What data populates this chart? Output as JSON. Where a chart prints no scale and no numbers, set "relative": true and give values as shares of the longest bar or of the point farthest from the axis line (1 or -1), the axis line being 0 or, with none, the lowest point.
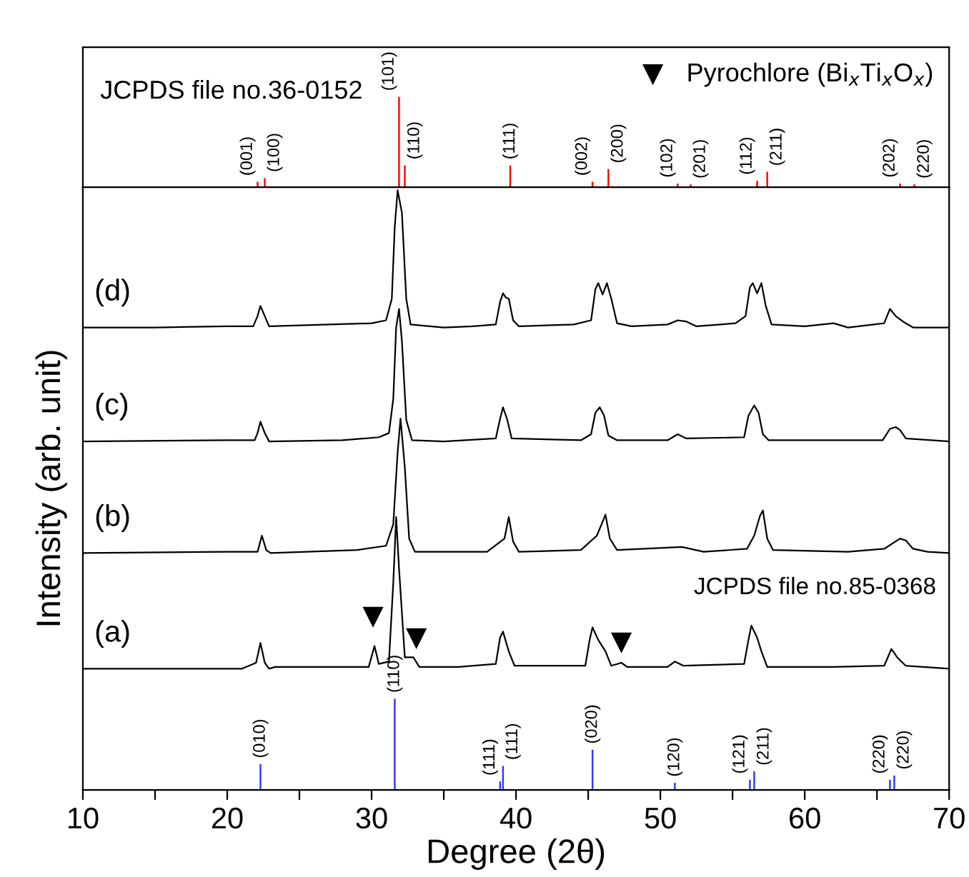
{
  "chart_data": [
    {
      "type": "bar",
      "relative": true,
      "xlim": [
        10,
        70
      ],
      "tick_labels": false,
      "color": "#ff0000",
      "x": [
        22.1,
        22.6,
        31.9,
        32.3,
        39.6,
        45.3,
        46.4,
        51.2,
        52.1,
        56.7,
        57.4,
        66.6,
        67.6
      ],
      "values": [
        0.06,
        0.1,
        1,
        0.24,
        0.24,
        0.06,
        0.2,
        0.04,
        0.03,
        0.07,
        0.17,
        0.04,
        0.03
      ],
      "annotations": [
        "JCPDS file no.36-0152",
        {
          "text": "(001)",
          "x": 22.1,
          "y": 0.06
        },
        {
          "text": "(100)",
          "x": 22.6,
          "y": 0.1
        },
        {
          "text": "(101)",
          "x": 31.9,
          "y": 1
        },
        {
          "text": "(110)",
          "x": 32.3,
          "y": 0.24
        },
        {
          "text": "(111)",
          "x": 39.6,
          "y": 0.24
        },
        {
          "text": "(002)",
          "x": 45.3,
          "y": 0.06
        },
        {
          "text": "(200)",
          "x": 46.4,
          "y": 0.2
        },
        {
          "text": "(102)",
          "x": 51.2,
          "y": 0.04
        },
        {
          "text": "(201)",
          "x": 52.1,
          "y": 0.03
        },
        {
          "text": "(112)",
          "x": 56.7,
          "y": 0.07
        },
        {
          "text": "(211)",
          "x": 57.4,
          "y": 0.17
        },
        {
          "text": "(202)",
          "x": 66.6,
          "y": 0.04
        },
        {
          "text": "(220)",
          "x": 67.6,
          "y": 0.03
        }
      ]
    },
    {
      "type": "line",
      "relative": true,
      "xlim": [
        10,
        70
      ],
      "tick_labels": "x",
      "legend": "top right",
      "xticks": [
        10,
        {
          "value": 15,
          "label": null
        },
        20,
        {
          "value": 25,
          "label": null
        },
        30,
        {
          "value": 35,
          "label": null
        },
        40,
        {
          "value": 45,
          "label": null
        },
        50,
        {
          "value": 55,
          "label": null
        },
        60,
        {
          "value": 65,
          "label": null
        },
        70
      ],
      "xlabel": "Degree (2θ)",
      "ylabel": "Intensity (arb. unit)",
      "series": [
        {
          "name": "(d)",
          "color": "#000000",
          "x": [
            10,
            15,
            20,
            21.8,
            22.1,
            22.3,
            22.6,
            22.9,
            27,
            30,
            31.0,
            31.4,
            31.6,
            31.8,
            32.1,
            32.4,
            32.7,
            35,
            37,
            38.6,
            38.9,
            39.1,
            39.3,
            39.5,
            39.8,
            40.2,
            44,
            45.2,
            45.5,
            45.7,
            46.0,
            46.3,
            46.6,
            47.0,
            48,
            50.5,
            51.2,
            51.8,
            52.5,
            55.2,
            55.9,
            56.2,
            56.4,
            56.7,
            57.0,
            57.3,
            57.7,
            60,
            62,
            63,
            65.5,
            65.9,
            66.3,
            66.8,
            67.5,
            70
          ],
          "values": [
            0.771,
            0.771,
            0.773,
            0.773,
            0.79,
            0.807,
            0.79,
            0.773,
            0.776,
            0.778,
            0.783,
            0.819,
            0.938,
            1.0,
            0.962,
            0.819,
            0.776,
            0.771,
            0.773,
            0.776,
            0.814,
            0.828,
            0.821,
            0.819,
            0.783,
            0.773,
            0.776,
            0.783,
            0.835,
            0.845,
            0.826,
            0.845,
            0.819,
            0.778,
            0.773,
            0.776,
            0.783,
            0.781,
            0.773,
            0.778,
            0.79,
            0.838,
            0.845,
            0.828,
            0.845,
            0.807,
            0.776,
            0.773,
            0.778,
            0.771,
            0.778,
            0.802,
            0.79,
            0.781,
            0.771,
            0.771
          ]
        },
        {
          "name": "(c)",
          "color": "#000000",
          "x": [
            10,
            20,
            21.9,
            22.1,
            22.3,
            22.6,
            22.9,
            28,
            30.5,
            31.2,
            31.5,
            31.7,
            31.9,
            32.1,
            32.4,
            32.8,
            35,
            38.6,
            38.9,
            39.1,
            39.4,
            39.7,
            44.5,
            45.2,
            45.5,
            45.8,
            46.1,
            46.4,
            47,
            50.5,
            51.2,
            51.8,
            55.8,
            56.1,
            56.5,
            56.8,
            57.1,
            57.5,
            62,
            65.4,
            65.9,
            66.3,
            66.6,
            67,
            70
          ],
          "values": [
            0.581,
            0.583,
            0.583,
            0.595,
            0.614,
            0.595,
            0.581,
            0.583,
            0.588,
            0.595,
            0.652,
            0.771,
            0.802,
            0.748,
            0.617,
            0.583,
            0.581,
            0.586,
            0.619,
            0.638,
            0.617,
            0.586,
            0.583,
            0.593,
            0.629,
            0.638,
            0.624,
            0.591,
            0.583,
            0.583,
            0.593,
            0.586,
            0.588,
            0.624,
            0.641,
            0.629,
            0.593,
            0.583,
            0.583,
            0.583,
            0.602,
            0.605,
            0.6,
            0.586,
            0.581
          ]
        },
        {
          "name": "(b)",
          "color": "#000000",
          "x": [
            10,
            20,
            22.1,
            22.4,
            22.7,
            23,
            29,
            31,
            31.5,
            31.8,
            32.0,
            32.3,
            32.6,
            33,
            38,
            39.2,
            39.5,
            39.8,
            40.2,
            44.5,
            45.6,
            46.0,
            46.2,
            46.5,
            47,
            51.5,
            53,
            56,
            56.5,
            56.9,
            57.1,
            57.4,
            57.8,
            63,
            65.5,
            66.6,
            67.0,
            67.5,
            68.5,
            70
          ],
          "values": [
            0.395,
            0.397,
            0.397,
            0.424,
            0.4,
            0.395,
            0.4,
            0.407,
            0.443,
            0.562,
            0.619,
            0.538,
            0.419,
            0.397,
            0.397,
            0.419,
            0.455,
            0.414,
            0.397,
            0.4,
            0.424,
            0.447,
            0.459,
            0.419,
            0.4,
            0.405,
            0.397,
            0.402,
            0.424,
            0.457,
            0.466,
            0.419,
            0.4,
            0.397,
            0.402,
            0.419,
            0.416,
            0.402,
            0.397,
            0.395
          ]
        },
        {
          "name": "(a)",
          "color": "#000000",
          "x": [
            10,
            21,
            22.0,
            22.3,
            22.6,
            22.9,
            23.3,
            29.8,
            30.2,
            30.5,
            31.2,
            31.5,
            31.7,
            31.9,
            32.3,
            32.9,
            33.3,
            36,
            38.6,
            38.9,
            39.1,
            39.5,
            39.9,
            44.8,
            45.1,
            45.3,
            45.7,
            46.2,
            46.6,
            47.3,
            47.7,
            50.5,
            51.0,
            51.6,
            55.8,
            56.1,
            56.3,
            56.7,
            57.0,
            57.4,
            62,
            65.5,
            66.0,
            66.4,
            67,
            70
          ],
          "values": [
            0.202,
            0.202,
            0.212,
            0.245,
            0.212,
            0.202,
            0.205,
            0.205,
            0.24,
            0.21,
            0.214,
            0.345,
            0.455,
            0.369,
            0.221,
            0.221,
            0.205,
            0.205,
            0.21,
            0.254,
            0.264,
            0.231,
            0.207,
            0.207,
            0.25,
            0.271,
            0.25,
            0.231,
            0.207,
            0.212,
            0.205,
            0.205,
            0.214,
            0.207,
            0.21,
            0.25,
            0.274,
            0.254,
            0.231,
            0.205,
            0.205,
            0.207,
            0.235,
            0.221,
            0.207,
            0.202
          ]
        },
        {
          "type": "bar",
          "color": "#3333ff",
          "x": [
            22.3,
            31.6,
            38.9,
            39.1,
            45.3,
            51.0,
            56.2,
            56.5,
            65.9,
            66.2
          ],
          "values": [
            0.043,
            0.152,
            0.014,
            0.04,
            0.067,
            0.012,
            0.017,
            0.031,
            0.017,
            0.024
          ]
        },
        {
          "type": "scatter",
          "name": "Pyrochlore (Bi$_{x}$Ti$_{x}$O$_{x}$)",
          "color": "#000000",
          "marker": "triangle",
          "x": [
            30.1,
            33.1,
            47.3
          ],
          "values": [
            0.288,
            0.252,
            0.245
          ]
        }
      ],
      "annotations": [
        "JCPDS file no.85-0368",
        {
          "text": "(010)",
          "x": 22.3,
          "y": 0.043
        },
        {
          "text": "(110)",
          "x": 31.6,
          "y": 0.152
        },
        {
          "text": "(111)",
          "x": 38.9,
          "y": 0.014
        },
        {
          "text": "(111)",
          "x": 39.1,
          "y": 0.04
        },
        {
          "text": "(020)",
          "x": 45.3,
          "y": 0.067
        },
        {
          "text": "(120)",
          "x": 51.0,
          "y": 0.012
        },
        {
          "text": "(121)",
          "x": 56.2,
          "y": 0.017
        },
        {
          "text": "(211)",
          "x": 56.5,
          "y": 0.031
        },
        {
          "text": "(220)",
          "x": 65.9,
          "y": 0.017
        },
        {
          "text": "(220)",
          "x": 66.2,
          "y": 0.024
        }
      ]
    }
  ]
}
